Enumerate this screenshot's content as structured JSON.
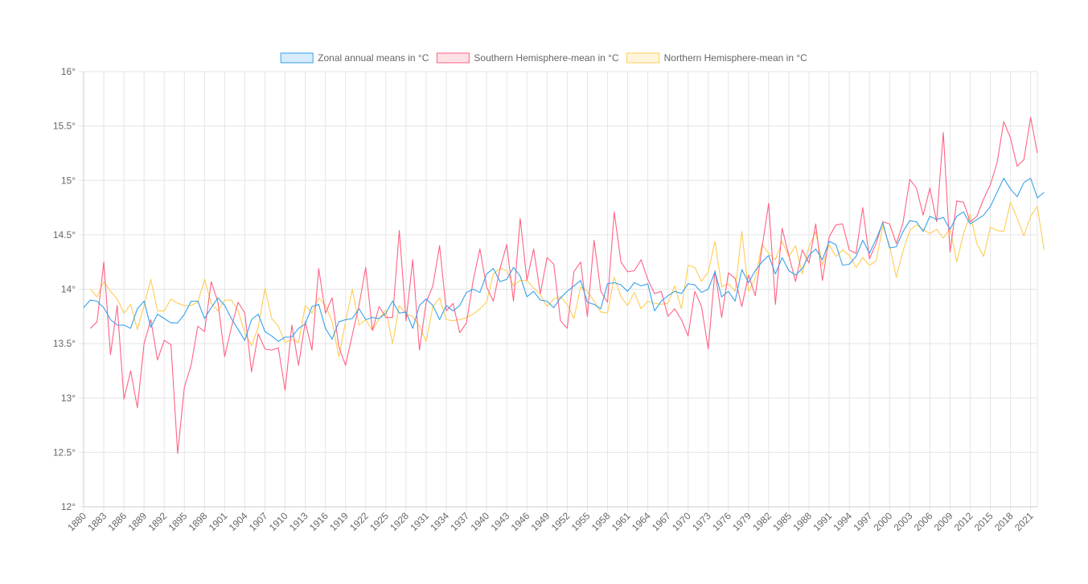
{
  "chart_data": {
    "type": "line",
    "title": "",
    "xlabel": "",
    "ylabel": "",
    "ylim": [
      12,
      16
    ],
    "y_ticks": [
      "12°",
      "12.5°",
      "13°",
      "13.5°",
      "14°",
      "14.5°",
      "15°",
      "15.5°",
      "16°"
    ],
    "y_tick_values": [
      12,
      12.5,
      13,
      13.5,
      14,
      14.5,
      15,
      15.5,
      16
    ],
    "grid": true,
    "legend_position": "top",
    "x_start": 1880,
    "x_end": 2022,
    "x_tick_labels": [
      "1880",
      "1883",
      "1886",
      "1889",
      "1892",
      "1895",
      "1898",
      "1901",
      "1904",
      "1907",
      "1910",
      "1913",
      "1916",
      "1919",
      "1922",
      "1925",
      "1928",
      "1931",
      "1934",
      "1937",
      "1940",
      "1943",
      "1946",
      "1949",
      "1952",
      "1955",
      "1958",
      "1961",
      "1964",
      "1967",
      "1970",
      "1973",
      "1976",
      "1979",
      "1982",
      "1985",
      "1988",
      "1991",
      "1994",
      "1997",
      "2000",
      "2003",
      "2006",
      "2009",
      "2012",
      "2015",
      "2018",
      "2021"
    ],
    "series": [
      {
        "name": "Zonal annual means in °C",
        "color": "#36a2eb",
        "fill": "#d7ecfb",
        "values": [
          13.83,
          13.9,
          13.89,
          13.83,
          13.72,
          13.67,
          13.67,
          13.64,
          13.82,
          13.89,
          13.65,
          13.77,
          13.73,
          13.69,
          13.69,
          13.77,
          13.89,
          13.89,
          13.73,
          13.83,
          13.92,
          13.85,
          13.73,
          13.63,
          13.53,
          13.72,
          13.77,
          13.61,
          13.57,
          13.52,
          13.56,
          13.56,
          13.64,
          13.68,
          13.84,
          13.86,
          13.64,
          13.54,
          13.7,
          13.72,
          13.73,
          13.82,
          13.72,
          13.74,
          13.73,
          13.78,
          13.89,
          13.78,
          13.79,
          13.64,
          13.85,
          13.91,
          13.85,
          13.72,
          13.85,
          13.8,
          13.85,
          13.97,
          14.0,
          13.97,
          14.14,
          14.19,
          14.07,
          14.09,
          14.2,
          14.12,
          13.93,
          13.98,
          13.9,
          13.89,
          13.83,
          13.92,
          13.98,
          14.03,
          14.08,
          13.88,
          13.86,
          13.82,
          14.05,
          14.06,
          14.04,
          13.98,
          14.06,
          14.03,
          14.05,
          13.8,
          13.89,
          13.94,
          13.98,
          13.96,
          14.05,
          14.04,
          13.97,
          14.0,
          14.16,
          13.93,
          13.98,
          13.89,
          14.18,
          14.06,
          14.17,
          14.25,
          14.31,
          14.14,
          14.29,
          14.17,
          14.13,
          14.19,
          14.31,
          14.37,
          14.27,
          14.44,
          14.41,
          14.22,
          14.23,
          14.3,
          14.45,
          14.33,
          14.46,
          14.61,
          14.38,
          14.39,
          14.53,
          14.63,
          14.62,
          14.53,
          14.67,
          14.64,
          14.66,
          14.55,
          14.67,
          14.71,
          14.6,
          14.64,
          14.68,
          14.76,
          14.89,
          15.02,
          14.92,
          14.85,
          14.98,
          15.02,
          14.84,
          14.89
        ]
      },
      {
        "name": "Southern Hemisphere-mean in °C",
        "color": "#ff6384",
        "fill": "#ffe0e6",
        "values": [
          null,
          13.64,
          13.7,
          14.25,
          13.4,
          13.85,
          12.99,
          13.25,
          12.91,
          13.5,
          13.72,
          13.35,
          13.53,
          13.49,
          12.49,
          13.1,
          13.3,
          13.66,
          13.61,
          14.07,
          13.88,
          13.38,
          13.65,
          13.88,
          13.78,
          13.24,
          13.59,
          13.45,
          13.44,
          13.46,
          13.07,
          13.67,
          13.3,
          13.7,
          13.44,
          14.19,
          13.78,
          13.92,
          13.47,
          13.3,
          13.58,
          13.85,
          14.2,
          13.62,
          13.84,
          13.74,
          13.74,
          14.54,
          13.71,
          14.27,
          13.44,
          13.88,
          14.03,
          14.4,
          13.8,
          13.87,
          13.6,
          13.69,
          14.08,
          14.37,
          14.02,
          13.89,
          14.19,
          14.41,
          13.89,
          14.65,
          14.08,
          14.37,
          13.96,
          14.29,
          14.23,
          13.71,
          13.64,
          14.16,
          14.25,
          13.75,
          14.45,
          13.98,
          13.88,
          14.71,
          14.25,
          14.16,
          14.17,
          14.27,
          14.09,
          13.96,
          13.98,
          13.75,
          13.82,
          13.72,
          13.57,
          13.98,
          13.84,
          13.45,
          14.17,
          13.74,
          14.15,
          14.1,
          13.84,
          14.13,
          13.94,
          14.38,
          14.79,
          13.86,
          14.56,
          14.31,
          14.07,
          14.36,
          14.24,
          14.6,
          14.08,
          14.48,
          14.59,
          14.6,
          14.36,
          14.33,
          14.75,
          14.28,
          14.42,
          14.62,
          14.6,
          14.42,
          14.61,
          15.01,
          14.93,
          14.68,
          14.93,
          14.62,
          15.44,
          14.34,
          14.81,
          14.8,
          14.62,
          14.67,
          14.83,
          14.96,
          15.16,
          15.54,
          15.39,
          15.13,
          15.19,
          15.58,
          15.25
        ]
      },
      {
        "name": "Northern Hemisphere-mean in °C",
        "color": "#ffcd56",
        "fill": "#fff5dd",
        "values": [
          null,
          14.0,
          13.93,
          14.07,
          13.98,
          13.91,
          13.78,
          13.86,
          13.63,
          13.85,
          14.09,
          13.8,
          13.8,
          13.91,
          13.87,
          13.85,
          13.85,
          13.88,
          14.09,
          13.87,
          13.8,
          13.9,
          13.9,
          13.8,
          13.6,
          13.48,
          13.65,
          14.01,
          13.73,
          13.66,
          13.51,
          13.54,
          13.51,
          13.85,
          13.78,
          13.92,
          13.85,
          13.7,
          13.38,
          13.7,
          14.0,
          13.67,
          13.72,
          13.62,
          13.73,
          13.81,
          13.5,
          13.85,
          13.77,
          13.75,
          13.66,
          13.52,
          13.84,
          13.92,
          13.72,
          13.71,
          13.72,
          13.74,
          13.77,
          13.82,
          13.88,
          14.14,
          14.19,
          14.17,
          14.03,
          14.08,
          14.08,
          14.01,
          13.95,
          13.84,
          13.91,
          13.93,
          13.86,
          13.73,
          14.02,
          13.98,
          13.89,
          13.79,
          13.78,
          14.11,
          13.93,
          13.85,
          13.97,
          13.82,
          13.89,
          13.87,
          13.86,
          13.87,
          14.03,
          13.82,
          14.22,
          14.2,
          14.07,
          14.16,
          14.44,
          14.02,
          14.05,
          13.98,
          14.53,
          13.98,
          14.1,
          14.41,
          14.33,
          14.27,
          14.44,
          14.3,
          14.4,
          14.14,
          14.39,
          14.53,
          14.22,
          14.41,
          14.3,
          14.36,
          14.31,
          14.2,
          14.29,
          14.22,
          14.26,
          14.58,
          14.4,
          14.11,
          14.35,
          14.54,
          14.59,
          14.55,
          14.51,
          14.55,
          14.47,
          14.56,
          14.25,
          14.51,
          14.69,
          14.42,
          14.3,
          14.57,
          14.54,
          14.53,
          14.8,
          14.65,
          14.49,
          14.67,
          14.76,
          14.36
        ]
      }
    ]
  }
}
